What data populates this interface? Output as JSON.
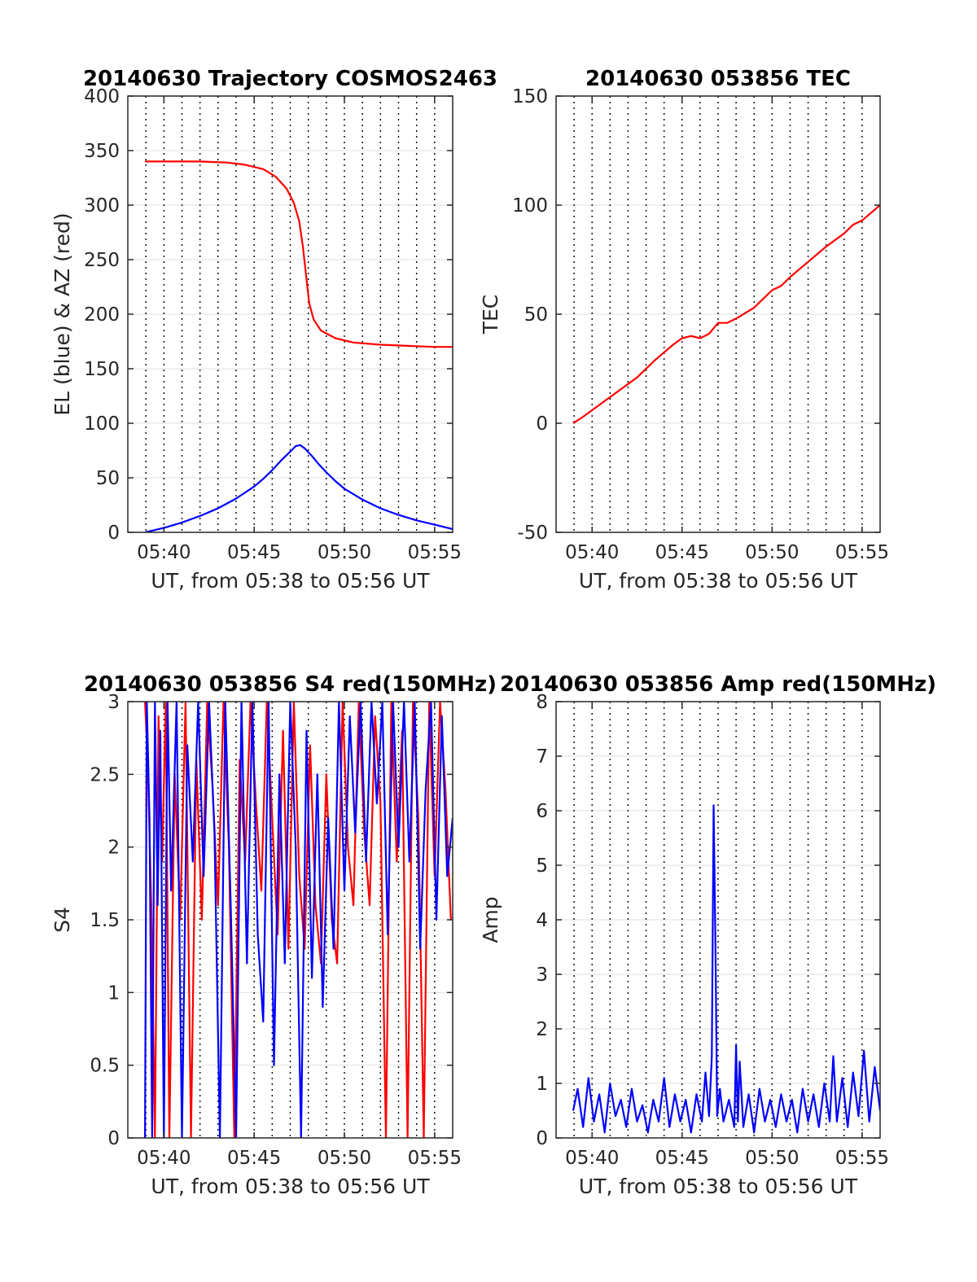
{
  "colors": {
    "red": "#ff0000",
    "blue": "#0000ff",
    "axis": "#262626",
    "grid": "#dfdfdf"
  },
  "chart_data": [
    {
      "id": "trajectory",
      "type": "line",
      "title": "20140630 Trajectory COSMOS2463",
      "xlabel": "UT, from 05:38 to 05:56 UT",
      "ylabel": "EL (blue) & AZ (red)",
      "x_unit": "minutes after 05:38 UT",
      "xlim": [
        0,
        18
      ],
      "ylim": [
        0,
        400
      ],
      "yticks": [
        0,
        50,
        100,
        150,
        200,
        250,
        300,
        350,
        400
      ],
      "ytick_labels": [
        "0",
        "50",
        "100",
        "150",
        "200",
        "250",
        "300",
        "350",
        "400"
      ],
      "xticks": [
        2,
        7,
        12,
        17
      ],
      "xtick_labels": [
        "05:40",
        "05:45",
        "05:50",
        "05:55"
      ],
      "dotted_lines_every_min": [
        1,
        17
      ],
      "grid": true,
      "series": [
        {
          "color": "red",
          "x": [
            0.95,
            2.5,
            4,
            5.5,
            6.5,
            7.5,
            8.2,
            8.8,
            9.2,
            9.5,
            9.7,
            9.9,
            10.05,
            10.3,
            10.7,
            11.5,
            12.5,
            14,
            15.5,
            17,
            18
          ],
          "y": [
            340,
            340,
            340,
            339,
            337,
            333,
            326,
            315,
            302,
            285,
            262,
            232,
            210,
            195,
            185,
            178,
            174,
            172,
            171,
            170,
            170
          ]
        },
        {
          "color": "blue",
          "x": [
            0.95,
            2,
            3,
            4,
            5,
            6,
            7,
            7.5,
            8,
            8.5,
            9,
            9.3,
            9.55,
            9.8,
            10.2,
            10.6,
            11,
            11.5,
            12,
            13,
            14,
            15,
            16,
            17,
            18
          ],
          "y": [
            0,
            4,
            9,
            15,
            22,
            31,
            42,
            49,
            57,
            66,
            74,
            79,
            80,
            77,
            70,
            62,
            55,
            47,
            40,
            30,
            22,
            16,
            11,
            7,
            3
          ]
        }
      ]
    },
    {
      "id": "tec",
      "type": "line",
      "title": "20140630 053856 TEC",
      "xlabel": "UT, from 05:38 to 05:56 UT",
      "ylabel": "TEC",
      "x_unit": "minutes after 05:38 UT",
      "xlim": [
        0,
        18
      ],
      "ylim": [
        -50,
        150
      ],
      "yticks": [
        -50,
        0,
        50,
        100,
        150
      ],
      "ytick_labels": [
        "-50",
        "0",
        "50",
        "100",
        "150"
      ],
      "xticks": [
        2,
        7,
        12,
        17
      ],
      "xtick_labels": [
        "05:40",
        "05:45",
        "05:50",
        "05:55"
      ],
      "dotted_lines_every_min": [
        1,
        17
      ],
      "grid": true,
      "series": [
        {
          "color": "red",
          "x": [
            0.95,
            1.5,
            2.5,
            3.5,
            4.5,
            5.5,
            6.5,
            7,
            7.5,
            8,
            8.5,
            9,
            9.5,
            10,
            11,
            11.5,
            12,
            12.5,
            13,
            14,
            15,
            16,
            16.5,
            17,
            18
          ],
          "y": [
            0,
            3,
            9,
            15,
            21,
            29,
            36,
            39,
            40,
            39,
            41,
            46,
            46,
            48,
            53,
            57,
            61,
            63,
            67,
            74,
            81,
            87,
            91,
            93,
            100
          ]
        }
      ]
    },
    {
      "id": "s4",
      "type": "line",
      "title": "20140630 053856 S4 red(150MHz)",
      "xlabel": "UT, from 05:38 to 05:56 UT",
      "ylabel": "S4",
      "x_unit": "minutes after 05:38 UT",
      "xlim": [
        0,
        18
      ],
      "ylim": [
        0,
        3
      ],
      "yticks": [
        0,
        0.5,
        1,
        1.5,
        2,
        2.5,
        3
      ],
      "ytick_labels": [
        "0",
        "0.5",
        "1",
        "1.5",
        "2",
        "2.5",
        "3"
      ],
      "xticks": [
        2,
        7,
        12,
        17
      ],
      "xtick_labels": [
        "05:40",
        "05:45",
        "05:50",
        "05:55"
      ],
      "dotted_lines_every_min": [
        1,
        17
      ],
      "grid": true,
      "series": [
        {
          "color": "red",
          "x": [
            0.95,
            1.1,
            1.3,
            1.5,
            1.7,
            1.9,
            2.1,
            2.3,
            2.6,
            2.9,
            3.2,
            3.5,
            3.8,
            4.1,
            4.4,
            4.7,
            5.0,
            5.3,
            5.6,
            5.9,
            6.2,
            6.5,
            6.8,
            7.1,
            7.4,
            7.7,
            8.0,
            8.3,
            8.6,
            8.9,
            9.2,
            9.5,
            9.8,
            10.1,
            10.4,
            10.7,
            11.0,
            11.3,
            11.6,
            11.9,
            12.2,
            12.5,
            12.8,
            13.1,
            13.4,
            13.7,
            14.0,
            14.3,
            14.6,
            14.9,
            15.2,
            15.5,
            15.8,
            16.1,
            16.4,
            16.7,
            17.0,
            17.3,
            17.6,
            17.9
          ],
          "y": [
            3,
            2.6,
            1.6,
            0,
            2.9,
            1.9,
            3,
            0,
            2.5,
            1.5,
            3,
            0,
            2.6,
            1.5,
            3,
            2.4,
            1.6,
            3,
            2.0,
            0,
            2.6,
            1.9,
            3,
            2.3,
            1.7,
            3,
            2.2,
            1.4,
            2.8,
            1.3,
            3,
            1.8,
            1.3,
            2.7,
            1.6,
            1.2,
            2.5,
            1.5,
            1.2,
            3,
            2.0,
            1.6,
            3,
            2.1,
            1.6,
            2.9,
            2.3,
            0,
            3,
            1.9,
            2.8,
            0,
            3,
            2.2,
            0,
            3,
            1.8,
            3,
            2.4,
            1.5
          ]
        },
        {
          "color": "blue",
          "x": [
            0.95,
            1.05,
            1.2,
            1.35,
            1.5,
            1.65,
            1.8,
            2.0,
            2.2,
            2.4,
            2.7,
            3.0,
            3.3,
            3.6,
            3.9,
            4.2,
            4.5,
            4.8,
            5.1,
            5.4,
            5.7,
            6.0,
            6.3,
            6.6,
            6.9,
            7.2,
            7.5,
            7.8,
            8.1,
            8.4,
            8.7,
            9.0,
            9.3,
            9.6,
            9.9,
            10.2,
            10.5,
            10.8,
            11.1,
            11.4,
            11.7,
            12.0,
            12.3,
            12.6,
            12.9,
            13.2,
            13.5,
            13.8,
            14.1,
            14.4,
            14.7,
            15.0,
            15.3,
            15.6,
            15.9,
            16.2,
            16.5,
            16.8,
            17.1,
            17.4,
            17.7,
            18.0
          ],
          "y": [
            0,
            3,
            2.2,
            0,
            3,
            1.6,
            2.8,
            0,
            3,
            1.7,
            3,
            0,
            2.7,
            1.9,
            3,
            1.8,
            3,
            2.1,
            0,
            3,
            1.6,
            0,
            3,
            1.2,
            3,
            1.4,
            0.8,
            3,
            0.5,
            2.5,
            1.2,
            3,
            2.0,
            0,
            2.8,
            1.1,
            2.5,
            0.9,
            2.2,
            1.3,
            3,
            1.7,
            2.9,
            2.1,
            3,
            1.9,
            3,
            2.3,
            3,
            1.4,
            3,
            2.0,
            3,
            1.9,
            3,
            1.3,
            2.4,
            3,
            1.5,
            2.9,
            1.8,
            2.2
          ]
        }
      ]
    },
    {
      "id": "amp",
      "type": "line",
      "title": "20140630 053856 Amp red(150MHz)",
      "xlabel": "UT, from 05:38 to 05:56 UT",
      "ylabel": "Amp",
      "x_unit": "minutes after 05:38 UT",
      "xlim": [
        0,
        18
      ],
      "ylim": [
        0,
        8
      ],
      "yticks": [
        0,
        1,
        2,
        3,
        4,
        5,
        6,
        7,
        8
      ],
      "ytick_labels": [
        "0",
        "1",
        "2",
        "3",
        "4",
        "5",
        "6",
        "7",
        "8"
      ],
      "xticks": [
        2,
        7,
        12,
        17
      ],
      "xtick_labels": [
        "05:40",
        "05:45",
        "05:50",
        "05:55"
      ],
      "dotted_lines_every_min": [
        1,
        17
      ],
      "grid": true,
      "series": [
        {
          "color": "blue",
          "x": [
            0.95,
            1.2,
            1.5,
            1.8,
            2.1,
            2.4,
            2.7,
            3.0,
            3.3,
            3.6,
            3.9,
            4.2,
            4.5,
            4.8,
            5.1,
            5.4,
            5.7,
            6.0,
            6.3,
            6.6,
            6.9,
            7.2,
            7.5,
            7.8,
            8.1,
            8.3,
            8.5,
            8.65,
            8.75,
            8.85,
            8.95,
            9.1,
            9.3,
            9.6,
            9.9,
            10.0,
            10.1,
            10.2,
            10.4,
            10.7,
            11.0,
            11.3,
            11.6,
            11.9,
            12.2,
            12.5,
            12.8,
            13.1,
            13.4,
            13.7,
            14.0,
            14.3,
            14.6,
            14.9,
            15.2,
            15.4,
            15.6,
            15.9,
            16.2,
            16.5,
            16.8,
            17.1,
            17.4,
            17.7,
            18.0
          ],
          "y": [
            0.5,
            0.9,
            0.2,
            1.1,
            0.3,
            0.8,
            0.1,
            1.0,
            0.4,
            0.7,
            0.2,
            0.9,
            0.3,
            0.6,
            0.1,
            0.7,
            0.3,
            1.1,
            0.2,
            0.8,
            0.3,
            0.7,
            0.1,
            0.8,
            0.3,
            1.2,
            0.4,
            1.5,
            6.1,
            3.6,
            0.4,
            0.9,
            0.3,
            0.7,
            0.2,
            1.7,
            0.3,
            1.4,
            0.2,
            0.8,
            0.1,
            0.9,
            0.3,
            0.7,
            0.2,
            0.8,
            0.3,
            0.7,
            0.1,
            0.9,
            0.3,
            0.8,
            0.2,
            1.0,
            0.3,
            1.5,
            0.3,
            1.1,
            0.2,
            1.2,
            0.4,
            1.6,
            0.3,
            1.3,
            0.5
          ]
        }
      ]
    }
  ]
}
